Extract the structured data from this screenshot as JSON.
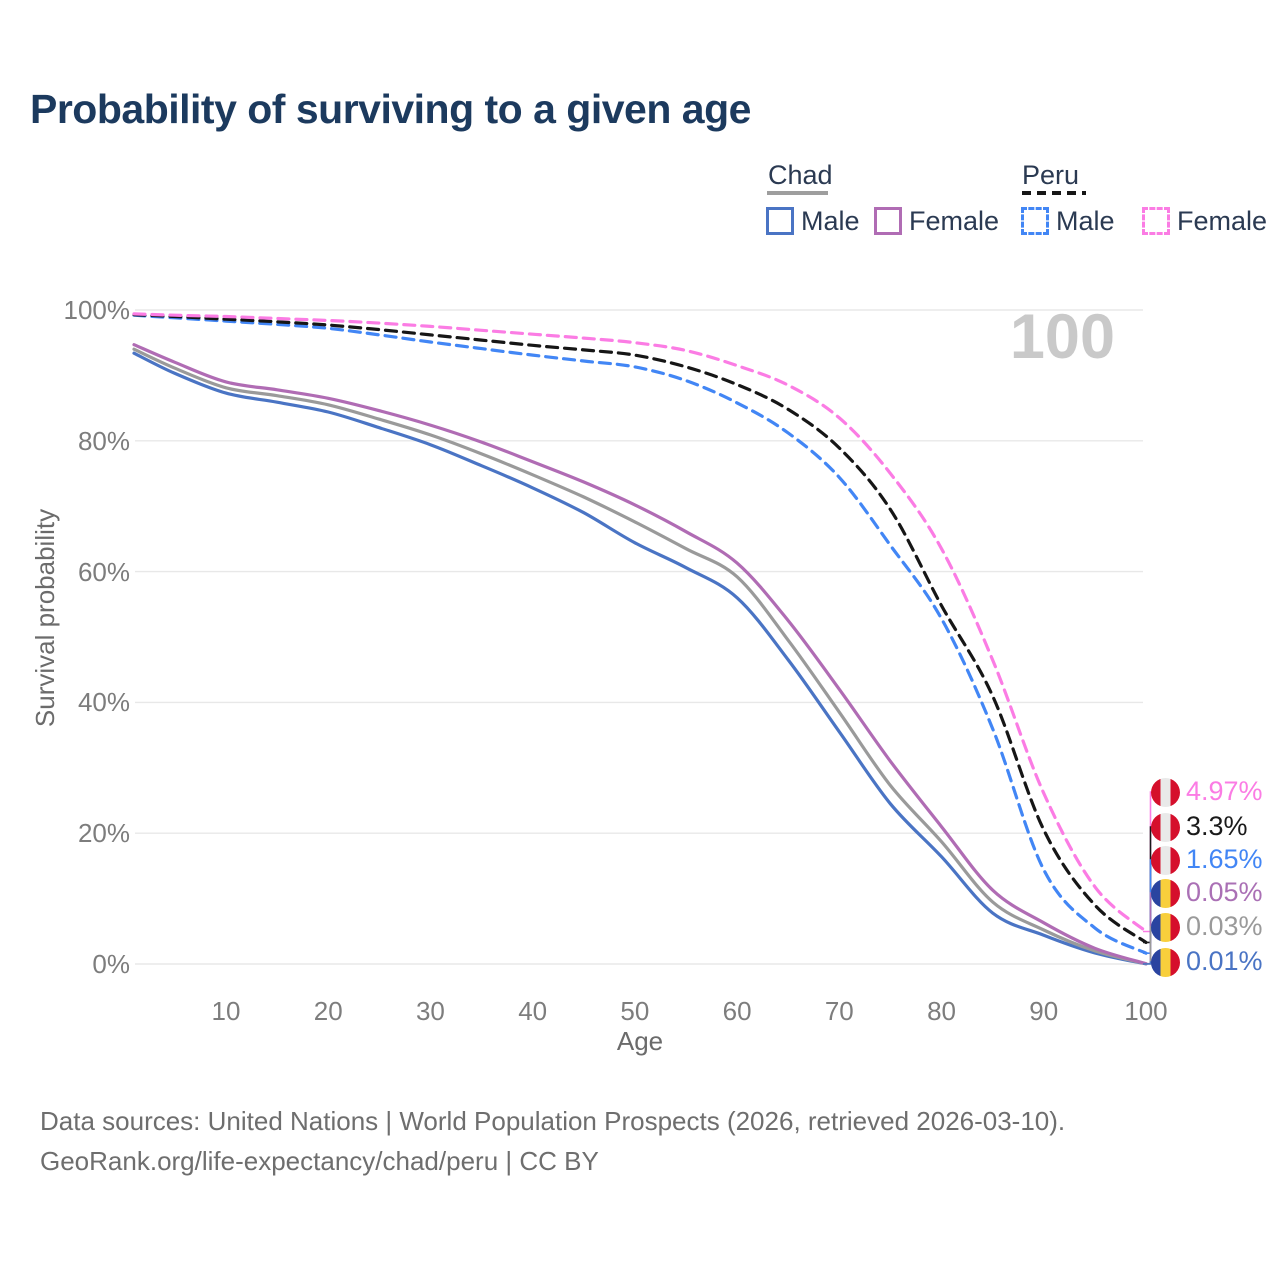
{
  "title": "Probability of surviving to a given age",
  "watermark_hover_age": "100",
  "legend": {
    "groups": [
      {
        "label": "Chad",
        "line_style": "solid",
        "header_swatch_color": "#9e9e9e",
        "items": [
          {
            "label": "Male",
            "color": "#4a74c4"
          },
          {
            "label": "Female",
            "color": "#b06cb4"
          }
        ]
      },
      {
        "label": "Peru",
        "line_style": "dashed",
        "header_swatch_color": "#161616",
        "items": [
          {
            "label": "Male",
            "color": "#4286f5"
          },
          {
            "label": "Female",
            "color": "#fb7ce4"
          }
        ]
      }
    ]
  },
  "y_axis": {
    "label": "Survival probability",
    "tick_labels": [
      "0%",
      "20%",
      "40%",
      "60%",
      "80%",
      "100%"
    ],
    "tick_values": [
      0,
      20,
      40,
      60,
      80,
      100
    ]
  },
  "x_axis": {
    "label": "Age",
    "tick_labels": [
      "10",
      "20",
      "30",
      "40",
      "50",
      "60",
      "70",
      "80",
      "90",
      "100"
    ],
    "tick_values": [
      10,
      20,
      30,
      40,
      50,
      60,
      70,
      80,
      90,
      100
    ]
  },
  "flags": {
    "peru": [
      "#d50f2c",
      "#e9e9e9",
      "#d50f2c"
    ],
    "chad": [
      "#2a44a0",
      "#f8cf3c",
      "#d50f2c"
    ]
  },
  "end_labels": [
    {
      "text": "4.97%",
      "color": "#fb7ce4",
      "flag": "peru",
      "series": "Peru Female",
      "value_pct": 4.97
    },
    {
      "text": "3.3%",
      "color": "#1a1a1a",
      "flag": "peru",
      "series": "Peru",
      "value_pct": 3.3
    },
    {
      "text": "1.65%",
      "color": "#4286f5",
      "flag": "peru",
      "series": "Peru Male",
      "value_pct": 1.65
    },
    {
      "text": "0.05%",
      "color": "#aa70b5",
      "flag": "chad",
      "series": "Chad Female",
      "value_pct": 0.05
    },
    {
      "text": "0.03%",
      "color": "#9a9a9a",
      "flag": "chad",
      "series": "Chad",
      "value_pct": 0.03
    },
    {
      "text": "0.01%",
      "color": "#4a74c4",
      "flag": "chad",
      "series": "Chad Male",
      "value_pct": 0.01
    }
  ],
  "footer": {
    "line1": "Data sources: United Nations | World Population Prospects (2026, retrieved 2026-03-10).",
    "line2": "GeoRank.org/life-expectancy/chad/peru | CC BY"
  },
  "chart_data": {
    "type": "line",
    "title": "Probability of surviving to a given age",
    "xlabel": "Age",
    "ylabel": "Survival probability",
    "xlim": [
      1,
      100
    ],
    "ylim_pct": [
      0,
      100
    ],
    "grid": "horizontal",
    "legend_position": "top-right",
    "hover_age_label": "100",
    "ages": [
      1,
      5,
      10,
      15,
      20,
      25,
      30,
      35,
      40,
      45,
      50,
      55,
      60,
      65,
      70,
      75,
      80,
      85,
      90,
      95,
      100
    ],
    "series": [
      {
        "name": "Chad Male",
        "country": "Chad",
        "style": "solid",
        "color": "#4a74c4",
        "values_pct": [
          93.4,
          90.3,
          87.3,
          85.9,
          84.4,
          82.0,
          79.4,
          76.2,
          72.8,
          69.0,
          64.4,
          60.6,
          56.0,
          46.5,
          35.5,
          24.5,
          16.4,
          7.8,
          4.4,
          1.7,
          0.01
        ]
      },
      {
        "name": "Chad",
        "country": "Chad",
        "style": "solid",
        "color": "#9a9a9a",
        "values_pct": [
          94.0,
          91.1,
          88.1,
          86.9,
          85.5,
          83.3,
          80.9,
          78.0,
          74.8,
          71.4,
          67.6,
          63.5,
          59.2,
          49.5,
          38.5,
          27.3,
          18.7,
          9.5,
          5.2,
          2.0,
          0.03
        ]
      },
      {
        "name": "Chad Female",
        "country": "Chad",
        "style": "solid",
        "color": "#b06cb4",
        "values_pct": [
          94.7,
          92.0,
          89.0,
          87.8,
          86.5,
          84.6,
          82.4,
          79.8,
          76.8,
          73.7,
          70.2,
          66.1,
          61.3,
          52.5,
          42.0,
          31.0,
          21.0,
          11.3,
          6.3,
          2.4,
          0.05
        ]
      },
      {
        "name": "Peru Male",
        "country": "Peru",
        "style": "dashed",
        "color": "#4286f5",
        "values_pct": [
          99.2,
          98.8,
          98.3,
          97.8,
          97.2,
          96.2,
          95.1,
          94.1,
          93.1,
          92.2,
          91.3,
          89.2,
          85.8,
          81.2,
          74.4,
          64.0,
          52.8,
          36.0,
          14.4,
          5.5,
          1.65
        ]
      },
      {
        "name": "Peru",
        "country": "Peru",
        "style": "dashed",
        "color": "#161616",
        "values_pct": [
          99.3,
          99.0,
          98.6,
          98.2,
          97.7,
          97.0,
          96.2,
          95.4,
          94.6,
          93.9,
          93.1,
          91.3,
          88.6,
          84.8,
          78.9,
          69.5,
          54.8,
          41.0,
          20.5,
          9.0,
          3.3
        ]
      },
      {
        "name": "Peru Female",
        "country": "Peru",
        "style": "dashed",
        "color": "#fb7ce4",
        "values_pct": [
          99.4,
          99.2,
          99.0,
          98.7,
          98.4,
          98.0,
          97.5,
          96.9,
          96.3,
          95.7,
          95.0,
          93.8,
          91.5,
          88.5,
          83.5,
          75.0,
          63.5,
          46.5,
          26.1,
          11.8,
          4.97
        ]
      }
    ]
  }
}
